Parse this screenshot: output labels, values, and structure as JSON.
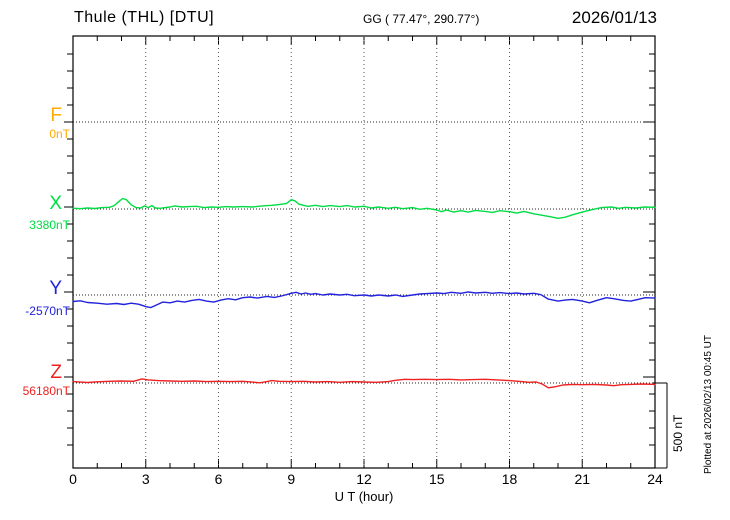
{
  "header": {
    "title": "Thule (THL)  [DTU]",
    "coords": "GG ( 77.47°, 290.77°)",
    "date": "2026/01/13"
  },
  "footer": {
    "xlabel": "U T (hour)"
  },
  "side": {
    "scale_label": "500 nT",
    "plotted_label": "Plotted at 2026/02/13 00:45 UT"
  },
  "components": [
    {
      "id": "F",
      "label": "F",
      "base_label": "0nT",
      "color": "#ffaa00"
    },
    {
      "id": "X",
      "label": "X",
      "base_label": "3380nT",
      "color": "#00dd44"
    },
    {
      "id": "Y",
      "label": "Y",
      "base_label": "-2570nT",
      "color": "#2222dd"
    },
    {
      "id": "Z",
      "label": "Z",
      "base_label": "56180nT",
      "color": "#ee2222"
    }
  ],
  "chart_data": {
    "type": "line",
    "title": "Thule (THL) [DTU] magnetogram, 2026/01/13",
    "xlabel": "U T (hour)",
    "xlim": [
      0,
      24
    ],
    "x_ticks": [
      0,
      3,
      6,
      9,
      12,
      15,
      18,
      21,
      24
    ],
    "grid": "dotted vertical lines every 3 h; dotted horizontal line at each component baseline",
    "legend_position": "left axis (component letters F, X, Y, Z)",
    "scale_bar_nT": 500,
    "nT_per_division": 100,
    "series": [
      {
        "name": "F",
        "baseline_nT": 0,
        "color": "#ffaa00",
        "points": []
      },
      {
        "name": "X",
        "baseline_nT": 3380,
        "color": "#00dd44",
        "points": [
          [
            0,
            5
          ],
          [
            0.3,
            2
          ],
          [
            0.6,
            6
          ],
          [
            0.9,
            3
          ],
          [
            1.2,
            8
          ],
          [
            1.5,
            10
          ],
          [
            1.7,
            20
          ],
          [
            1.9,
            45
          ],
          [
            2.05,
            62
          ],
          [
            2.2,
            55
          ],
          [
            2.4,
            25
          ],
          [
            2.6,
            8
          ],
          [
            2.8,
            6
          ],
          [
            2.95,
            18
          ],
          [
            3.1,
            8
          ],
          [
            3.25,
            20
          ],
          [
            3.4,
            6
          ],
          [
            3.6,
            4
          ],
          [
            3.8,
            8
          ],
          [
            4.0,
            12
          ],
          [
            4.2,
            18
          ],
          [
            4.5,
            12
          ],
          [
            4.8,
            14
          ],
          [
            5.1,
            16
          ],
          [
            5.4,
            8
          ],
          [
            5.7,
            12
          ],
          [
            6.0,
            10
          ],
          [
            6.3,
            14
          ],
          [
            6.6,
            12
          ],
          [
            7.0,
            14
          ],
          [
            7.4,
            12
          ],
          [
            7.8,
            18
          ],
          [
            8.2,
            22
          ],
          [
            8.5,
            26
          ],
          [
            8.8,
            32
          ],
          [
            9.0,
            55
          ],
          [
            9.15,
            48
          ],
          [
            9.3,
            30
          ],
          [
            9.5,
            22
          ],
          [
            9.7,
            16
          ],
          [
            10.0,
            22
          ],
          [
            10.3,
            14
          ],
          [
            10.6,
            20
          ],
          [
            11.0,
            14
          ],
          [
            11.3,
            20
          ],
          [
            11.6,
            12
          ],
          [
            12.0,
            16
          ],
          [
            12.3,
            6
          ],
          [
            12.6,
            12
          ],
          [
            13.0,
            4
          ],
          [
            13.3,
            10
          ],
          [
            13.6,
            2
          ],
          [
            14.0,
            8
          ],
          [
            14.3,
            -2
          ],
          [
            14.6,
            4
          ],
          [
            15.0,
            -6
          ],
          [
            15.2,
            -16
          ],
          [
            15.4,
            -6
          ],
          [
            15.7,
            -18
          ],
          [
            16.0,
            -10
          ],
          [
            16.3,
            -18
          ],
          [
            16.6,
            -8
          ],
          [
            17.0,
            -14
          ],
          [
            17.3,
            -20
          ],
          [
            17.6,
            -10
          ],
          [
            18.0,
            -16
          ],
          [
            18.3,
            -24
          ],
          [
            18.6,
            -14
          ],
          [
            19.0,
            -28
          ],
          [
            19.3,
            -36
          ],
          [
            19.7,
            -46
          ],
          [
            20.0,
            -55
          ],
          [
            20.3,
            -48
          ],
          [
            20.6,
            -34
          ],
          [
            21.0,
            -18
          ],
          [
            21.4,
            -4
          ],
          [
            21.8,
            8
          ],
          [
            22.2,
            12
          ],
          [
            22.5,
            4
          ],
          [
            22.8,
            10
          ],
          [
            23.2,
            6
          ],
          [
            23.6,
            12
          ],
          [
            24,
            10
          ]
        ]
      },
      {
        "name": "Y",
        "baseline_nT": -2570,
        "color": "#2222dd",
        "points": [
          [
            0,
            -38
          ],
          [
            0.3,
            -34
          ],
          [
            0.6,
            -44
          ],
          [
            1.0,
            -48
          ],
          [
            1.4,
            -54
          ],
          [
            1.8,
            -50
          ],
          [
            2.1,
            -56
          ],
          [
            2.4,
            -48
          ],
          [
            2.7,
            -54
          ],
          [
            3.0,
            -68
          ],
          [
            3.2,
            -74
          ],
          [
            3.45,
            -58
          ],
          [
            3.7,
            -42
          ],
          [
            4.0,
            -46
          ],
          [
            4.3,
            -36
          ],
          [
            4.6,
            -42
          ],
          [
            4.9,
            -32
          ],
          [
            5.2,
            -26
          ],
          [
            5.5,
            -36
          ],
          [
            5.8,
            -42
          ],
          [
            6.1,
            -30
          ],
          [
            6.4,
            -22
          ],
          [
            6.7,
            -28
          ],
          [
            7.0,
            -16
          ],
          [
            7.3,
            -12
          ],
          [
            7.6,
            -18
          ],
          [
            8.0,
            -8
          ],
          [
            8.3,
            -14
          ],
          [
            8.6,
            -6
          ],
          [
            9.0,
            10
          ],
          [
            9.2,
            16
          ],
          [
            9.4,
            6
          ],
          [
            9.6,
            12
          ],
          [
            9.8,
            4
          ],
          [
            10.0,
            8
          ],
          [
            10.3,
            0
          ],
          [
            10.6,
            6
          ],
          [
            11.0,
            0
          ],
          [
            11.3,
            4
          ],
          [
            11.6,
            -4
          ],
          [
            12.0,
            0
          ],
          [
            12.3,
            -6
          ],
          [
            12.6,
            0
          ],
          [
            13.0,
            -6
          ],
          [
            13.3,
            0
          ],
          [
            13.6,
            -8
          ],
          [
            14.0,
            0
          ],
          [
            14.3,
            6
          ],
          [
            14.6,
            8
          ],
          [
            15.0,
            12
          ],
          [
            15.3,
            8
          ],
          [
            15.6,
            16
          ],
          [
            16.0,
            10
          ],
          [
            16.3,
            18
          ],
          [
            16.6,
            12
          ],
          [
            17.0,
            16
          ],
          [
            17.3,
            10
          ],
          [
            17.6,
            14
          ],
          [
            18.0,
            8
          ],
          [
            18.3,
            12
          ],
          [
            18.6,
            6
          ],
          [
            19.0,
            10
          ],
          [
            19.3,
            2
          ],
          [
            19.6,
            -24
          ],
          [
            20.0,
            -36
          ],
          [
            20.3,
            -30
          ],
          [
            20.6,
            -26
          ],
          [
            21.0,
            -36
          ],
          [
            21.3,
            -46
          ],
          [
            21.6,
            -32
          ],
          [
            22.0,
            -16
          ],
          [
            22.3,
            -22
          ],
          [
            22.7,
            -32
          ],
          [
            23.0,
            -36
          ],
          [
            23.3,
            -26
          ],
          [
            23.6,
            -16
          ],
          [
            24,
            -18
          ]
        ]
      },
      {
        "name": "Z",
        "baseline_nT": 56180,
        "color": "#ee2222",
        "points": [
          [
            0,
            8
          ],
          [
            0.3,
            5
          ],
          [
            0.6,
            3
          ],
          [
            1.0,
            7
          ],
          [
            1.5,
            10
          ],
          [
            2.0,
            12
          ],
          [
            2.5,
            10
          ],
          [
            2.85,
            24
          ],
          [
            3.1,
            18
          ],
          [
            3.5,
            14
          ],
          [
            4.0,
            12
          ],
          [
            4.5,
            10
          ],
          [
            5.0,
            12
          ],
          [
            5.5,
            8
          ],
          [
            6.0,
            10
          ],
          [
            6.5,
            8
          ],
          [
            7.0,
            10
          ],
          [
            7.4,
            5
          ],
          [
            7.7,
            1
          ],
          [
            8.0,
            8
          ],
          [
            8.2,
            14
          ],
          [
            8.5,
            10
          ],
          [
            9.0,
            8
          ],
          [
            9.5,
            10
          ],
          [
            10.0,
            6
          ],
          [
            10.5,
            8
          ],
          [
            11.0,
            4
          ],
          [
            11.5,
            8
          ],
          [
            12.0,
            6
          ],
          [
            12.5,
            4
          ],
          [
            13.0,
            8
          ],
          [
            13.3,
            16
          ],
          [
            13.7,
            22
          ],
          [
            14.0,
            20
          ],
          [
            14.5,
            22
          ],
          [
            15.0,
            20
          ],
          [
            15.5,
            22
          ],
          [
            16.0,
            18
          ],
          [
            16.5,
            20
          ],
          [
            17.0,
            22
          ],
          [
            17.5,
            18
          ],
          [
            18.0,
            14
          ],
          [
            18.5,
            8
          ],
          [
            18.8,
            4
          ],
          [
            19.1,
            6
          ],
          [
            19.35,
            -6
          ],
          [
            19.6,
            -28
          ],
          [
            19.9,
            -22
          ],
          [
            20.2,
            -12
          ],
          [
            20.6,
            -8
          ],
          [
            21.0,
            -10
          ],
          [
            21.5,
            -8
          ],
          [
            22.0,
            -12
          ],
          [
            22.3,
            -16
          ],
          [
            22.6,
            -10
          ],
          [
            23.0,
            -8
          ],
          [
            23.5,
            -6
          ],
          [
            24,
            -8
          ]
        ]
      }
    ]
  }
}
